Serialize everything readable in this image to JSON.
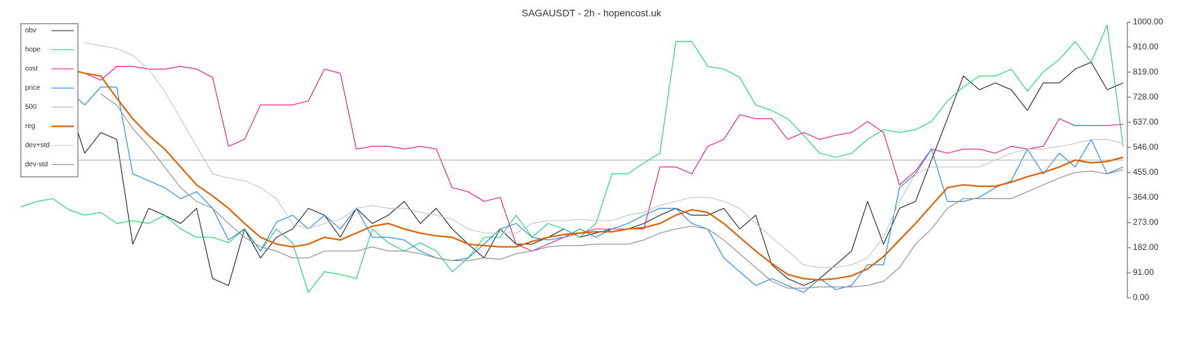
{
  "chart_data": {
    "type": "line",
    "title": "SAGAUSDT - 2h - hopencost.uk",
    "legend": "upper left",
    "ylim": [
      0,
      1000
    ],
    "yticks": [
      {
        "value": 0,
        "label": "0.00"
      },
      {
        "value": 91,
        "label": "91.00"
      },
      {
        "value": 182,
        "label": "182.00"
      },
      {
        "value": 273,
        "label": "273.00"
      },
      {
        "value": 364,
        "label": "364.00"
      },
      {
        "value": 455,
        "label": "455.00"
      },
      {
        "value": 546,
        "label": "546.00"
      },
      {
        "value": 637,
        "label": "637.00"
      },
      {
        "value": 728,
        "label": "728.00"
      },
      {
        "value": 819,
        "label": "819.00"
      },
      {
        "value": 910,
        "label": "910.00"
      },
      {
        "value": 1000,
        "label": "1000.00"
      }
    ],
    "series": [
      {
        "name": "obv",
        "color": "#222222",
        "values": [
          null,
          null,
          null,
          700,
          525,
          600,
          575,
          195,
          325,
          300,
          270,
          325,
          70,
          45,
          250,
          145,
          220,
          250,
          325,
          300,
          220,
          325,
          270,
          300,
          350,
          270,
          325,
          250,
          195,
          145,
          250,
          195,
          195,
          220,
          250,
          220,
          235,
          250,
          250,
          270,
          300,
          325,
          300,
          300,
          325,
          250,
          300,
          120,
          70,
          45,
          70,
          120,
          170,
          350,
          195,
          325,
          350,
          500,
          650,
          805,
          755,
          780,
          755,
          680,
          780,
          780,
          830,
          855,
          755,
          780
        ]
      },
      {
        "name": "hope",
        "color": "#19d36b",
        "values": [
          330,
          350,
          360,
          320,
          300,
          310,
          270,
          280,
          270,
          300,
          250,
          220,
          220,
          200,
          250,
          170,
          250,
          200,
          20,
          95,
          85,
          70,
          250,
          200,
          170,
          200,
          170,
          95,
          145,
          220,
          220,
          300,
          220,
          270,
          250,
          220,
          270,
          450,
          450,
          490,
          525,
          930,
          930,
          840,
          830,
          800,
          700,
          680,
          650,
          590,
          525,
          510,
          525,
          575,
          610,
          600,
          610,
          640,
          715,
          765,
          805,
          805,
          830,
          750,
          820,
          865,
          930,
          855,
          990,
          550
        ]
      },
      {
        "name": "cost",
        "color": "#e0157f",
        "values": [
          null,
          null,
          null,
          830,
          815,
          790,
          840,
          840,
          830,
          830,
          840,
          830,
          800,
          550,
          575,
          700,
          700,
          700,
          715,
          830,
          815,
          540,
          550,
          550,
          540,
          550,
          540,
          400,
          385,
          350,
          365,
          195,
          170,
          195,
          220,
          235,
          250,
          250,
          250,
          250,
          475,
          475,
          450,
          550,
          575,
          665,
          650,
          650,
          575,
          600,
          575,
          590,
          600,
          640,
          600,
          410,
          460,
          540,
          525,
          540,
          540,
          525,
          550,
          540,
          550,
          650,
          625,
          625,
          625,
          630
        ]
      },
      {
        "name": "price",
        "color": "#1f84e0",
        "values": [
          null,
          null,
          null,
          750,
          700,
          765,
          765,
          450,
          425,
          400,
          360,
          385,
          325,
          210,
          250,
          170,
          275,
          300,
          250,
          300,
          250,
          325,
          220,
          220,
          210,
          170,
          145,
          135,
          145,
          195,
          250,
          270,
          220,
          210,
          220,
          250,
          220,
          250,
          270,
          300,
          325,
          325,
          270,
          250,
          145,
          95,
          45,
          70,
          45,
          20,
          70,
          30,
          45,
          120,
          120,
          400,
          450,
          540,
          350,
          350,
          365,
          400,
          425,
          540,
          450,
          525,
          475,
          575,
          450,
          475
        ]
      },
      {
        "name": "500",
        "color": "#aaaaaa",
        "values": [
          500,
          500,
          500,
          500,
          500,
          500,
          500,
          500,
          500,
          500,
          500,
          500,
          500,
          500,
          500,
          500,
          500,
          500,
          500,
          500,
          500,
          500,
          500,
          500,
          500,
          500,
          500,
          500,
          500,
          500,
          500,
          500,
          500,
          500,
          500,
          500,
          500,
          500,
          500,
          500,
          500,
          500,
          500,
          500,
          500,
          500,
          500,
          500,
          500,
          500,
          500,
          500,
          500,
          500,
          500,
          500,
          500,
          500,
          500,
          500,
          500,
          500,
          500,
          500,
          500,
          500,
          500,
          500,
          500,
          500
        ]
      },
      {
        "name": "reg",
        "color": "#d9640a",
        "values": [
          null,
          null,
          null,
          830,
          815,
          805,
          725,
          650,
          590,
          540,
          475,
          410,
          370,
          325,
          270,
          220,
          195,
          185,
          195,
          220,
          210,
          235,
          260,
          270,
          250,
          235,
          225,
          220,
          195,
          190,
          185,
          185,
          205,
          220,
          230,
          235,
          240,
          240,
          250,
          255,
          270,
          300,
          320,
          310,
          270,
          220,
          170,
          125,
          85,
          70,
          65,
          70,
          80,
          105,
          150,
          210,
          270,
          335,
          400,
          410,
          405,
          405,
          420,
          440,
          455,
          475,
          500,
          490,
          495,
          510
        ]
      },
      {
        "name": "dev+std",
        "color": "#c4c4c4",
        "values": [
          null,
          null,
          null,
          null,
          925,
          915,
          905,
          880,
          830,
          750,
          650,
          550,
          450,
          435,
          425,
          400,
          360,
          270,
          250,
          270,
          285,
          325,
          335,
          325,
          325,
          310,
          300,
          285,
          250,
          235,
          235,
          235,
          270,
          280,
          280,
          285,
          280,
          280,
          300,
          310,
          335,
          350,
          365,
          365,
          350,
          325,
          270,
          220,
          170,
          120,
          110,
          110,
          120,
          145,
          220,
          350,
          450,
          475,
          475,
          475,
          475,
          500,
          525,
          540,
          540,
          550,
          560,
          575,
          575,
          560
        ]
      },
      {
        "name": "dev-std",
        "color": "#8a8a8a",
        "values": [
          null,
          null,
          null,
          null,
          null,
          740,
          700,
          615,
          550,
          475,
          400,
          350,
          325,
          270,
          220,
          185,
          170,
          145,
          145,
          170,
          170,
          170,
          185,
          170,
          170,
          160,
          145,
          135,
          135,
          145,
          140,
          160,
          170,
          185,
          190,
          190,
          195,
          195,
          195,
          210,
          235,
          250,
          260,
          250,
          210,
          160,
          110,
          60,
          35,
          35,
          40,
          40,
          40,
          45,
          60,
          110,
          195,
          250,
          325,
          360,
          360,
          360,
          360,
          385,
          410,
          435,
          455,
          460,
          450,
          465
        ]
      }
    ]
  }
}
